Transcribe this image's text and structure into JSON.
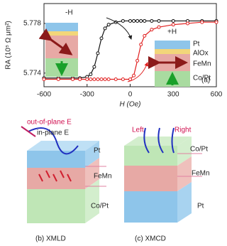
{
  "chart_data": {
    "type": "line",
    "xlabel": "H (Oe)",
    "ylabel": "RA (10⁵ Ω μm²)",
    "x": [
      -600,
      -500,
      -400,
      -350,
      -300,
      -275,
      -250,
      -225,
      -200,
      -175,
      -150,
      -100,
      -50,
      0,
      25,
      50,
      75,
      100,
      150,
      200,
      300,
      400,
      500,
      600
    ],
    "series": [
      {
        "color": "#111111",
        "values": [
          5.7736,
          5.7736,
          5.7736,
          5.7736,
          5.7737,
          5.7739,
          5.7745,
          5.7756,
          5.7768,
          5.7776,
          5.7779,
          5.7781,
          5.7782,
          5.7782,
          5.7782,
          5.7782,
          5.7782,
          5.7782,
          5.7782,
          5.7782,
          5.7782,
          5.7782,
          5.7782,
          5.7782
        ]
      },
      {
        "color": "#e02020",
        "values": [
          5.7735,
          5.7735,
          5.7735,
          5.7735,
          5.7735,
          5.7735,
          5.7735,
          5.7735,
          5.7735,
          5.7735,
          5.7735,
          5.7735,
          5.7735,
          5.7735,
          5.7738,
          5.775,
          5.7763,
          5.777,
          5.7775,
          5.7777,
          5.7779,
          5.778,
          5.7781,
          5.7781
        ]
      }
    ],
    "xlim": [
      -600,
      600
    ],
    "xticks": [
      -600,
      -300,
      0,
      300,
      600
    ],
    "ylim": [
      5.7729,
      5.7796
    ],
    "yticks": [
      5.774,
      5.778
    ],
    "annotations": {
      "minus_h": "-H",
      "plus_h": "+H",
      "panel": "(a)",
      "layers": [
        "Pt",
        "AlOx",
        "FeMn",
        "Co/Pt"
      ]
    }
  },
  "panel_b": {
    "labels": [
      "out-of-plane E",
      "in-plane E"
    ],
    "layers": [
      "Pt",
      "FeMn",
      "Co/Pt"
    ],
    "caption": "(b)  XMLD"
  },
  "panel_c": {
    "labels": [
      "Left",
      "Right"
    ],
    "layers": [
      "Co/Pt",
      "FeMn",
      "Pt"
    ],
    "caption": "(c)  XMCD"
  }
}
